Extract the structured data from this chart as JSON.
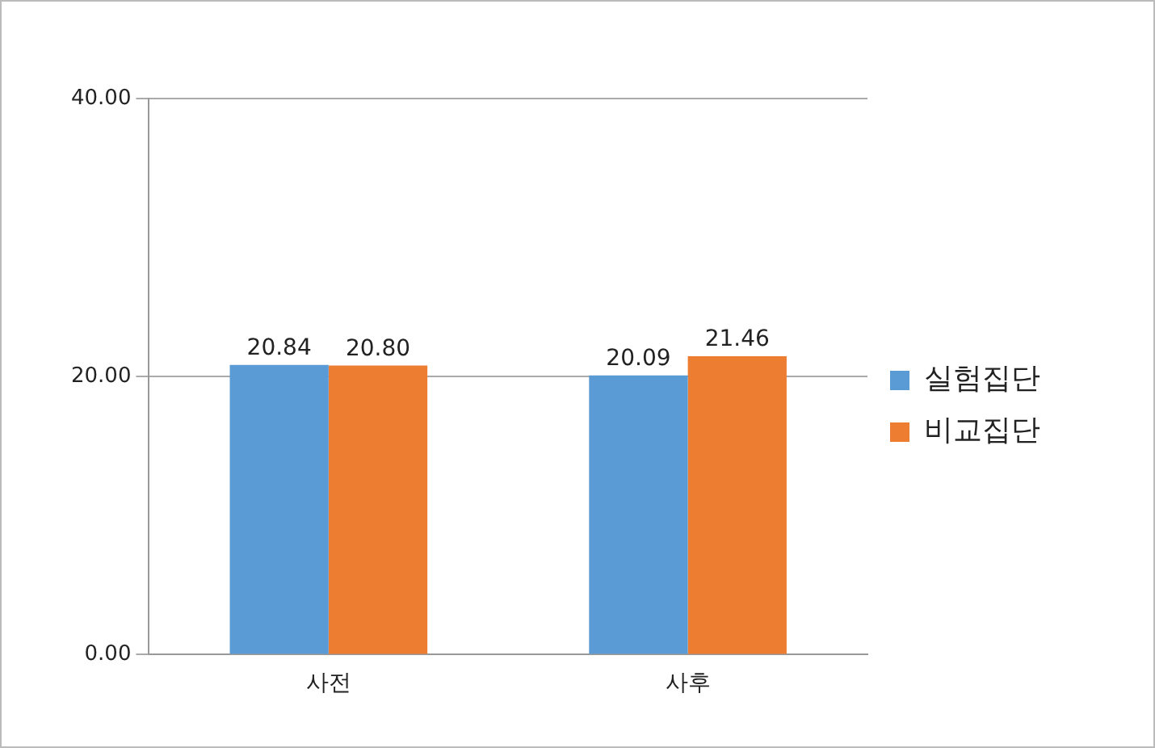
{
  "chart_data": {
    "type": "bar",
    "categories": [
      "사전",
      "사후"
    ],
    "series": [
      {
        "name": "실험집단",
        "color": "#5b9bd5",
        "values": [
          20.84,
          20.09
        ],
        "value_labels": [
          "20.84",
          "20.09"
        ]
      },
      {
        "name": "비교집단",
        "color": "#ed7d31",
        "values": [
          20.8,
          21.46
        ],
        "value_labels": [
          "20.80",
          "21.46"
        ]
      }
    ],
    "ylim": [
      0,
      40
    ],
    "yticks": [
      {
        "value": 0,
        "label": "0.00"
      },
      {
        "value": 20,
        "label": "20.00"
      },
      {
        "value": 40,
        "label": "40.00"
      }
    ],
    "grid": "y",
    "legend": "right"
  }
}
